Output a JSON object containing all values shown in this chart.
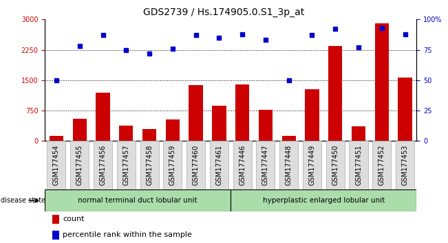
{
  "title": "GDS2739 / Hs.174905.0.S1_3p_at",
  "samples": [
    "GSM177454",
    "GSM177455",
    "GSM177456",
    "GSM177457",
    "GSM177458",
    "GSM177459",
    "GSM177460",
    "GSM177461",
    "GSM177446",
    "GSM177447",
    "GSM177448",
    "GSM177449",
    "GSM177450",
    "GSM177451",
    "GSM177452",
    "GSM177453"
  ],
  "counts": [
    130,
    550,
    1200,
    370,
    300,
    530,
    1380,
    870,
    1390,
    760,
    120,
    1280,
    2350,
    360,
    2900,
    1560
  ],
  "percentiles": [
    50,
    78,
    87,
    75,
    72,
    76,
    87,
    85,
    88,
    83,
    50,
    87,
    92,
    77,
    93,
    88
  ],
  "group1_label": "normal terminal duct lobular unit",
  "group1_count": 8,
  "group2_label": "hyperplastic enlarged lobular unit",
  "group2_count": 8,
  "disease_state_label": "disease state",
  "bar_color": "#cc0000",
  "dot_color": "#0000cc",
  "left_yaxis_color": "#cc0000",
  "right_yaxis_color": "#0000cc",
  "left_ylim": [
    0,
    3000
  ],
  "right_ylim": [
    0,
    100
  ],
  "left_yticks": [
    0,
    750,
    1500,
    2250,
    3000
  ],
  "right_yticks": [
    0,
    25,
    50,
    75,
    100
  ],
  "right_yticklabels": [
    "0",
    "25",
    "50",
    "75",
    "100%"
  ],
  "gridline_values": [
    750,
    1500,
    2250
  ],
  "group1_color": "#aaddaa",
  "group2_color": "#aaddaa",
  "legend_count_label": "count",
  "legend_pct_label": "percentile rank within the sample",
  "title_fontsize": 10,
  "tick_label_fontsize": 7,
  "axis_label_fontsize": 8,
  "legend_fontsize": 8,
  "box_bg_color": "#dddddd",
  "box_border_color": "#aaaaaa"
}
